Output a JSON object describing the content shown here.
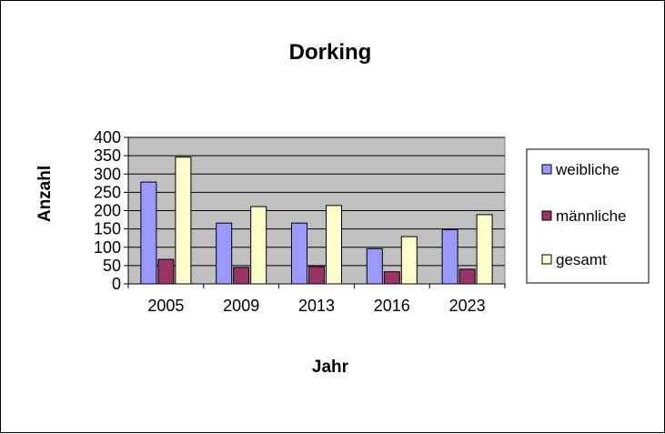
{
  "chart_data": {
    "type": "bar",
    "title": "Dorking",
    "xlabel": "Jahr",
    "ylabel": "Anzahl",
    "categories": [
      "2005",
      "2009",
      "2013",
      "2016",
      "2023"
    ],
    "series": [
      {
        "name": "weibliche",
        "values": [
          278,
          166,
          166,
          96,
          148
        ]
      },
      {
        "name": "männliche",
        "values": [
          67,
          45,
          47,
          33,
          40
        ]
      },
      {
        "name": "gesamt",
        "values": [
          346,
          211,
          214,
          129,
          189
        ]
      }
    ],
    "ylim": [
      0,
      400
    ],
    "yticks": [
      0,
      50,
      100,
      150,
      200,
      250,
      300,
      350,
      400
    ],
    "grid": true,
    "legend": "right",
    "colors": {
      "plot_background": "#c0c0c0",
      "series": [
        "#9999ff",
        "#993366",
        "#ffffcc"
      ]
    }
  }
}
